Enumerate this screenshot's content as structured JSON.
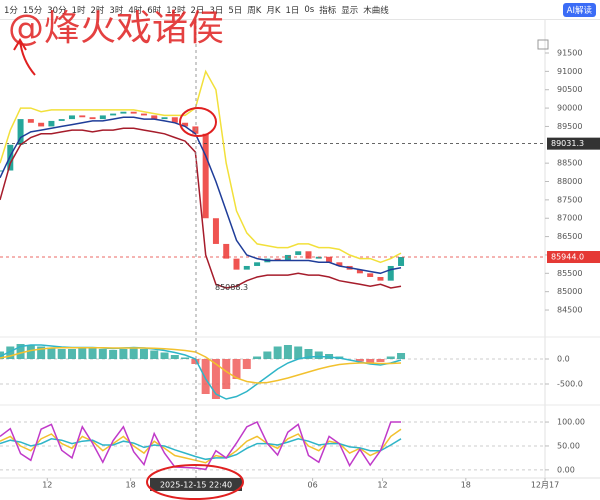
{
  "toolbar": {
    "intervals": [
      "1分",
      "15分",
      "30分",
      "1时",
      "2时",
      "3时",
      "4时",
      "6时",
      "12时",
      "2日",
      "3日",
      "5日",
      "周K",
      "月K",
      "1日"
    ],
    "items": [
      "0s",
      "指标",
      "显示",
      "木曲线"
    ],
    "ai_button": "AI解读"
  },
  "watermark": "@烽火戏诸侯",
  "cursor_time": "2025-12-15 22:40",
  "low_label": "85088.3",
  "chart_data": [
    {
      "type": "line",
      "x": [
        0,
        1,
        2,
        3,
        4,
        5,
        6,
        7,
        8,
        9,
        10,
        11,
        12,
        13,
        14,
        15,
        16,
        17,
        18,
        19,
        20,
        21,
        22,
        23,
        24,
        25,
        26,
        27,
        28,
        29,
        30,
        31,
        32,
        33,
        34,
        35,
        36,
        37,
        38,
        39
      ],
      "xlim": [
        0,
        53
      ],
      "ylim": [
        83820,
        91854
      ],
      "yticks": [
        84500,
        85000,
        85500,
        86000,
        86500,
        87000,
        87500,
        88000,
        88500,
        89500,
        90000,
        90500,
        91000,
        91500
      ],
      "xticks": [
        {
          "value": 4.6,
          "label": "12"
        },
        {
          "value": 12.7,
          "label": "18"
        },
        {
          "value": 30.4,
          "label": "06"
        },
        {
          "value": 37.2,
          "label": "12"
        },
        {
          "value": 45.3,
          "label": "18"
        },
        {
          "value": 53,
          "label": "12月17"
        }
      ],
      "up_color": "#26a69a",
      "down_color": "#ef5350",
      "close": [
        88300,
        89000,
        89700,
        89600,
        89500,
        89650,
        89700,
        89800,
        89750,
        89700,
        89800,
        89850,
        89900,
        89850,
        89800,
        89700,
        89750,
        89600,
        89500,
        89300,
        87000,
        86300,
        85900,
        85600,
        85700,
        85800,
        85900,
        85850,
        86000,
        86100,
        85900,
        85950,
        85800,
        85700,
        85600,
        85500,
        85400,
        85300,
        85700,
        85944
      ],
      "series": [
        {
          "color": "#f2e03a",
          "values": [
            88500,
            89400,
            90000,
            90000,
            89900,
            89950,
            89950,
            89950,
            89950,
            89950,
            89950,
            89950,
            89950,
            89950,
            89900,
            89850,
            89800,
            89800,
            89800,
            90000,
            91000,
            90500,
            88500,
            87200,
            86600,
            86300,
            86250,
            86200,
            86200,
            86300,
            86300,
            86200,
            86200,
            86150,
            86000,
            85900,
            85900,
            85800,
            85900,
            86050
          ]
        },
        {
          "color": "#1f3d99",
          "values": [
            88100,
            88700,
            89200,
            89350,
            89400,
            89450,
            89500,
            89550,
            89600,
            89650,
            89650,
            89700,
            89750,
            89750,
            89700,
            89700,
            89650,
            89600,
            89500,
            89300,
            88700,
            88000,
            87200,
            86400,
            86000,
            85900,
            85850,
            85850,
            85850,
            85850,
            85850,
            85800,
            85800,
            85700,
            85650,
            85600,
            85550,
            85500,
            85600,
            85650
          ]
        },
        {
          "color": "#a61c2b",
          "values": [
            87500,
            88500,
            89000,
            89200,
            89300,
            89300,
            89350,
            89400,
            89400,
            89350,
            89400,
            89400,
            89450,
            89450,
            89400,
            89350,
            89300,
            89200,
            89100,
            88800,
            86000,
            85200,
            85100,
            85150,
            85300,
            85400,
            85450,
            85450,
            85450,
            85500,
            85450,
            85450,
            85400,
            85300,
            85250,
            85200,
            85150,
            85200,
            85100,
            85150
          ]
        }
      ],
      "price_labels": [
        {
          "value": 89031.3,
          "color": "#333333"
        },
        {
          "value": {
            "value": 85944,
            "label": "85944.0"
          },
          "color": "#e53935"
        }
      ]
    },
    {
      "type": "bar",
      "ylim": [
        -850,
        400
      ],
      "yticks": [
        {
          "value": 0,
          "label": "0.0"
        },
        {
          "value": -500,
          "label": "-500.0"
        }
      ],
      "up_color": "#26a69a",
      "down_color": "#ef5350",
      "values": [
        150,
        250,
        300,
        280,
        250,
        230,
        200,
        200,
        210,
        220,
        200,
        180,
        200,
        220,
        200,
        170,
        130,
        80,
        30,
        -100,
        -700,
        -800,
        -600,
        -400,
        -200,
        50,
        150,
        250,
        280,
        250,
        200,
        150,
        100,
        50,
        0,
        -50,
        -80,
        -60,
        50,
        120
      ],
      "series": [
        {
          "color": "#2fb5c8",
          "values": [
            50,
            150,
            250,
            280,
            280,
            260,
            240,
            230,
            230,
            230,
            220,
            210,
            220,
            230,
            220,
            200,
            170,
            130,
            80,
            0,
            -400,
            -700,
            -800,
            -750,
            -650,
            -500,
            -350,
            -200,
            -80,
            0,
            40,
            50,
            40,
            20,
            -20,
            -60,
            -100,
            -120,
            -80,
            -20
          ]
        },
        {
          "color": "#f2c12e",
          "values": [
            20,
            60,
            120,
            170,
            200,
            220,
            225,
            225,
            225,
            225,
            225,
            220,
            220,
            220,
            220,
            215,
            205,
            190,
            170,
            140,
            40,
            -100,
            -250,
            -380,
            -450,
            -480,
            -470,
            -430,
            -380,
            -320,
            -260,
            -200,
            -150,
            -110,
            -90,
            -80,
            -80,
            -90,
            -90,
            -80
          ]
        }
      ]
    },
    {
      "type": "line",
      "ylim": [
        -17,
        121
      ],
      "yticks": [
        {
          "value": 100,
          "label": "100.00"
        },
        {
          "value": 50,
          "label": "50.00"
        },
        {
          "value": 0,
          "label": "0.00"
        }
      ],
      "series": [
        {
          "color": "#f2c12e",
          "values": [
            60,
            70,
            50,
            40,
            65,
            75,
            55,
            45,
            70,
            60,
            40,
            55,
            70,
            50,
            35,
            60,
            45,
            30,
            25,
            20,
            15,
            30,
            25,
            40,
            60,
            70,
            55,
            45,
            65,
            75,
            50,
            40,
            60,
            55,
            35,
            45,
            30,
            40,
            70,
            85
          ]
        },
        {
          "color": "#2fb5c8",
          "values": [
            55,
            62,
            58,
            50,
            55,
            65,
            62,
            55,
            60,
            62,
            52,
            52,
            60,
            56,
            47,
            52,
            50,
            42,
            35,
            28,
            22,
            25,
            25,
            32,
            45,
            55,
            55,
            52,
            58,
            65,
            60,
            52,
            55,
            55,
            48,
            46,
            40,
            40,
            52,
            65
          ]
        },
        {
          "color": "#c03ac9",
          "values": [
            70,
            86,
            34,
            20,
            85,
            95,
            41,
            25,
            90,
            56,
            16,
            61,
            90,
            38,
            11,
            76,
            35,
            6,
            5,
            4,
            1,
            40,
            25,
            56,
            90,
            100,
            55,
            31,
            79,
            95,
            30,
            16,
            70,
            55,
            9,
            43,
            10,
            40,
            100,
            100
          ]
        }
      ]
    }
  ]
}
